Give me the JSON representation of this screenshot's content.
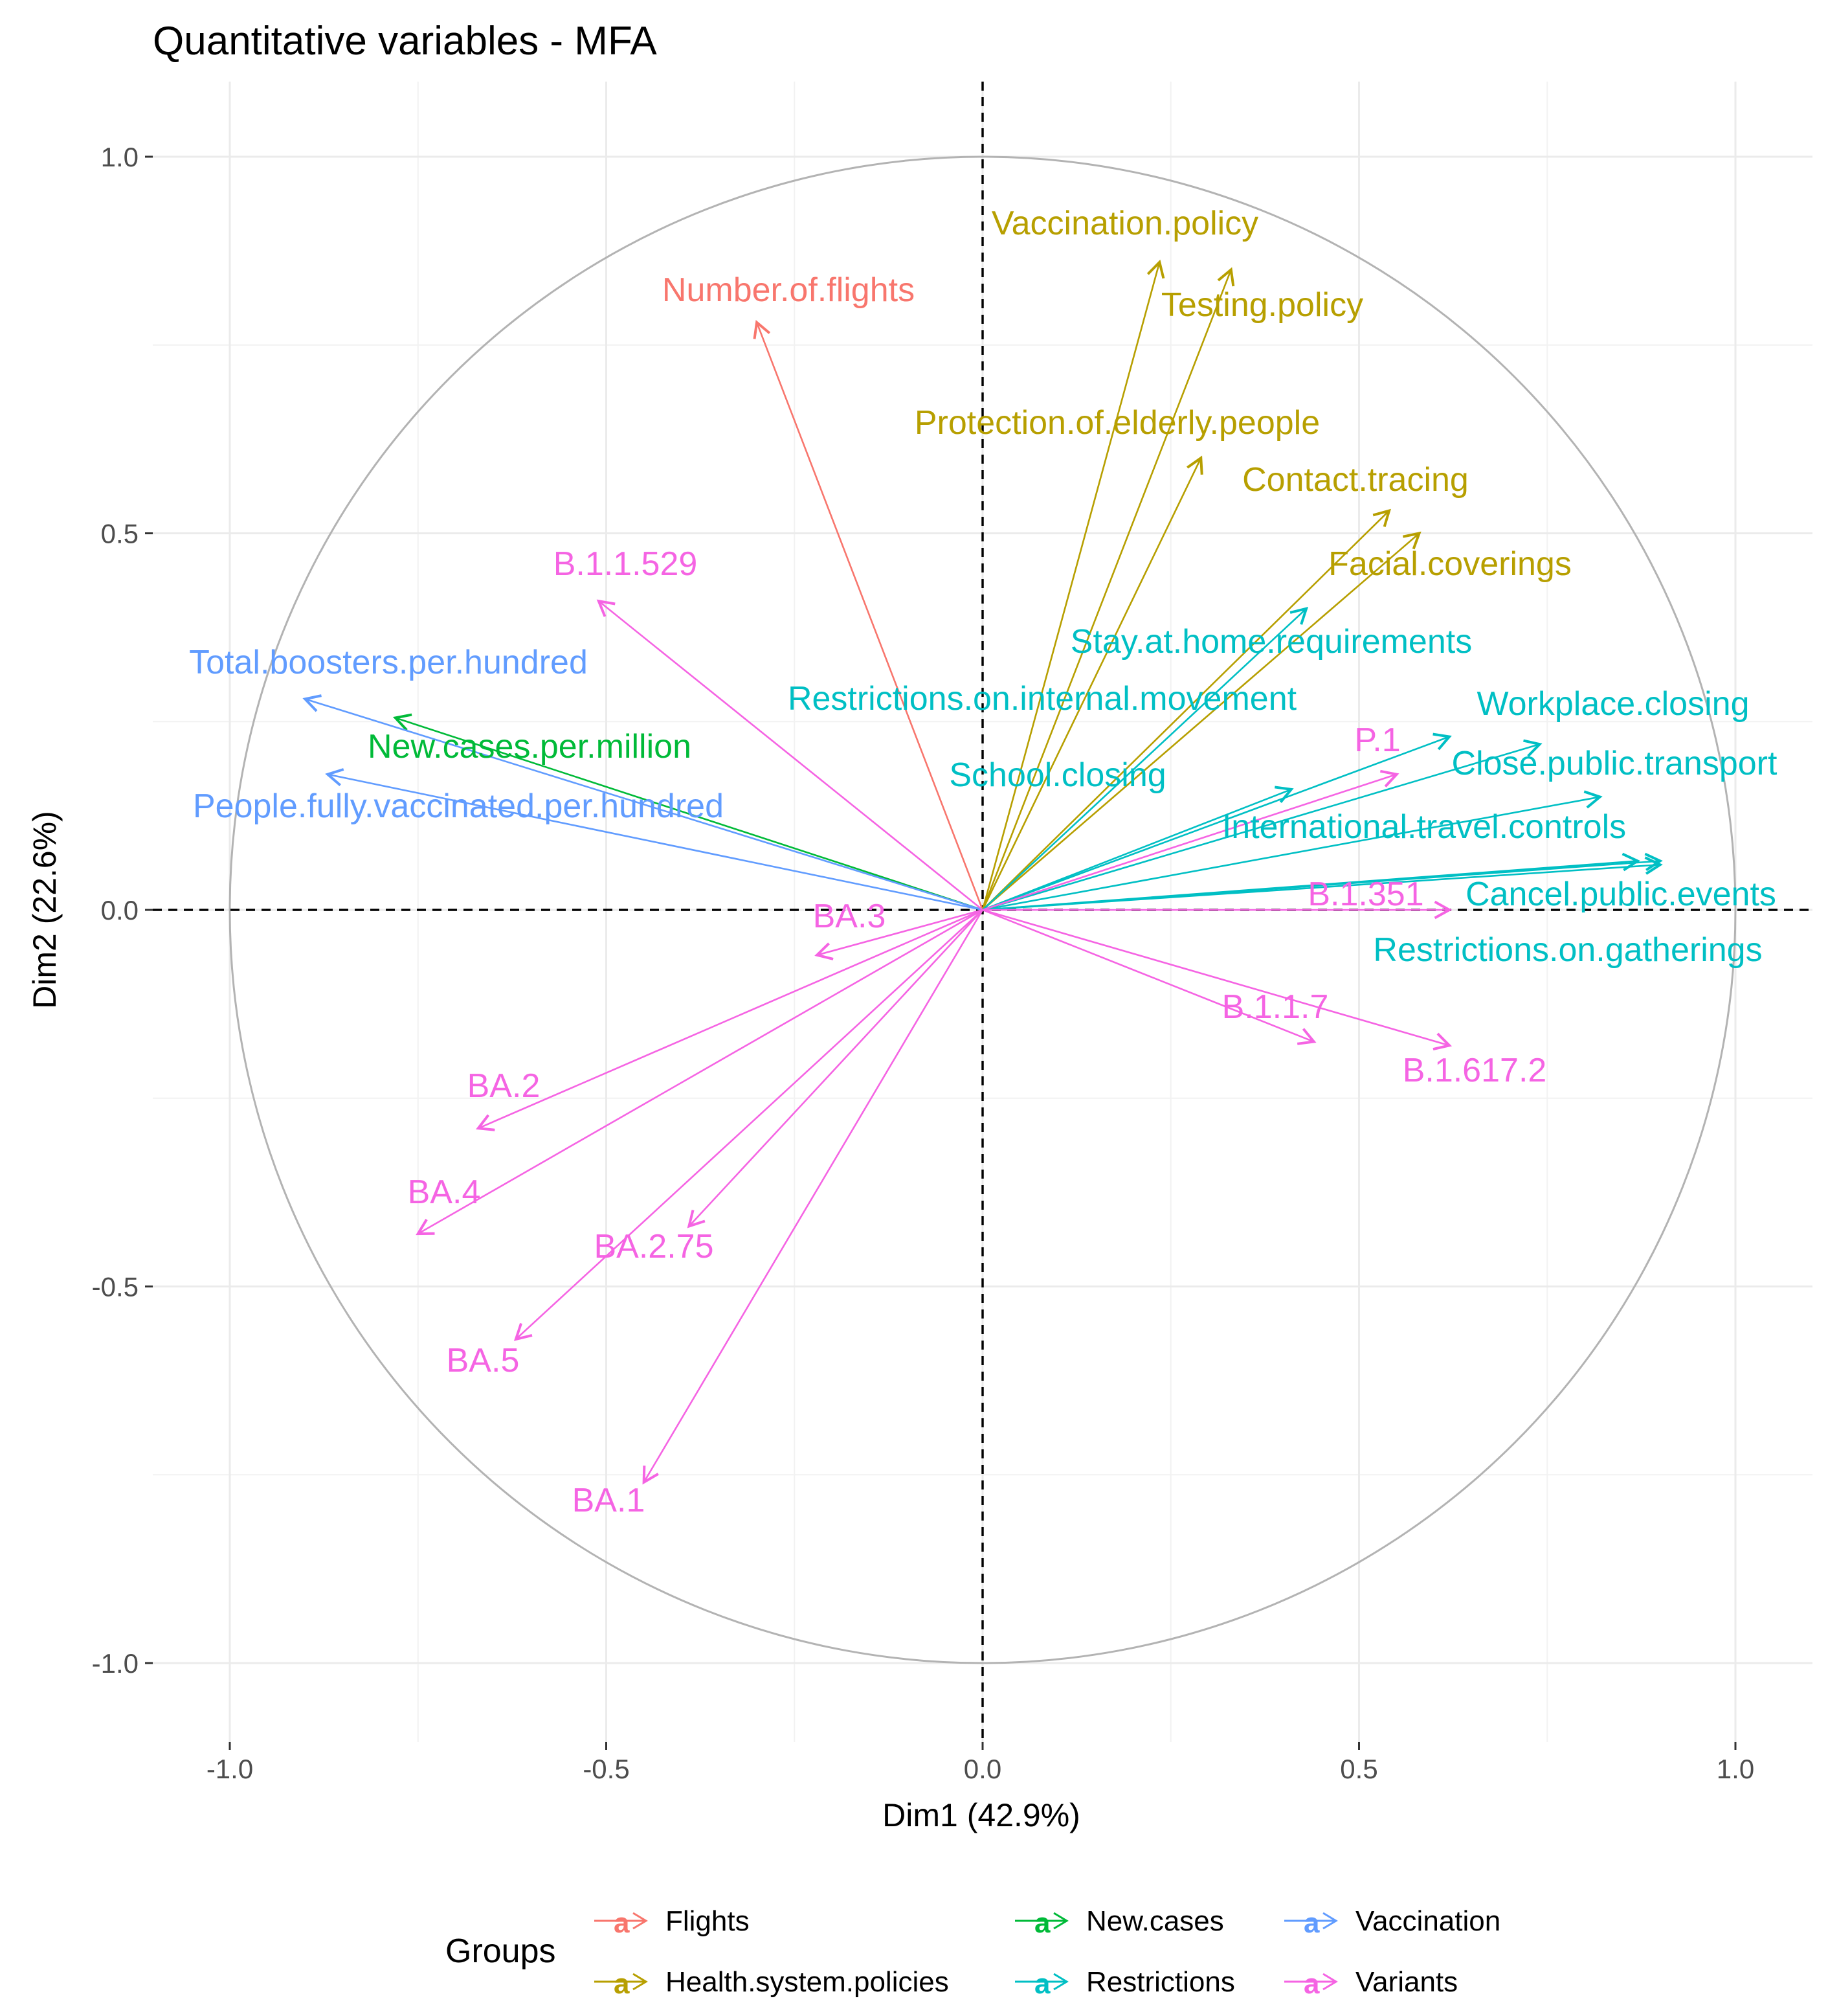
{
  "chart_data": {
    "type": "scatter",
    "subtype": "correlation-circle",
    "title": "Quantitative variables - MFA",
    "xlabel": "Dim1 (42.9%)",
    "ylabel": "Dim2 (22.6%)",
    "xlim": [
      -1.1,
      1.1
    ],
    "ylim": [
      -1.1,
      1.1
    ],
    "x_ticks": [
      -1.0,
      -0.5,
      0.0,
      0.5,
      1.0
    ],
    "x_tick_labels": [
      "-1.0",
      "-0.5",
      "0.0",
      "0.5",
      "1.0"
    ],
    "y_ticks": [
      -1.0,
      -0.5,
      0.0,
      0.5,
      1.0
    ],
    "y_tick_labels": [
      "-1.0",
      "-0.5",
      "0.0",
      "0.5",
      "1.0"
    ],
    "grid": true,
    "legend": {
      "title": "Groups",
      "position": "bottom",
      "entries": [
        {
          "name": "Flights",
          "color": "#F8766D"
        },
        {
          "name": "Health.system.policies",
          "color": "#B79F00"
        },
        {
          "name": "New.cases",
          "color": "#00BA38"
        },
        {
          "name": "Restrictions",
          "color": "#00BFC4"
        },
        {
          "name": "Vaccination",
          "color": "#619CFF"
        },
        {
          "name": "Variants",
          "color": "#F564E3"
        }
      ]
    },
    "variables": [
      {
        "name": "Number.of.flights",
        "group": "Flights",
        "x": -0.3,
        "y": 0.78
      },
      {
        "name": "Vaccination.policy",
        "group": "Health.system.policies",
        "x": 0.235,
        "y": 0.86
      },
      {
        "name": "Testing.policy",
        "group": "Health.system.policies",
        "x": 0.33,
        "y": 0.85
      },
      {
        "name": "Protection.of.elderly.people",
        "group": "Health.system.policies",
        "x": 0.29,
        "y": 0.6
      },
      {
        "name": "Contact.tracing",
        "group": "Health.system.policies",
        "x": 0.54,
        "y": 0.53
      },
      {
        "name": "Facial.coverings",
        "group": "Health.system.policies",
        "x": 0.58,
        "y": 0.5
      },
      {
        "name": "New.cases.per.million",
        "group": "New.cases",
        "x": -0.78,
        "y": 0.255
      },
      {
        "name": "Stay.at.home.requirements",
        "group": "Restrictions",
        "x": 0.43,
        "y": 0.4
      },
      {
        "name": "Restrictions.on.internal.movement",
        "group": "Restrictions",
        "x": 0.62,
        "y": 0.23
      },
      {
        "name": "Workplace.closing",
        "group": "Restrictions",
        "x": 0.74,
        "y": 0.22
      },
      {
        "name": "School.closing",
        "group": "Restrictions",
        "x": 0.41,
        "y": 0.16
      },
      {
        "name": "Close.public.transport",
        "group": "Restrictions",
        "x": 0.82,
        "y": 0.15
      },
      {
        "name": "International.travel.controls",
        "group": "Restrictions",
        "x": 0.87,
        "y": 0.065
      },
      {
        "name": "Cancel.public.events",
        "group": "Restrictions",
        "x": 0.9,
        "y": 0.065
      },
      {
        "name": "Restrictions.on.gatherings",
        "group": "Restrictions",
        "x": 0.9,
        "y": 0.06
      },
      {
        "name": "Total.boosters.per.hundred",
        "group": "Vaccination",
        "x": -0.9,
        "y": 0.28
      },
      {
        "name": "People.fully.vaccinated.per.hundred",
        "group": "Vaccination",
        "x": -0.87,
        "y": 0.18
      },
      {
        "name": "B.1.1.529",
        "group": "Variants",
        "x": -0.51,
        "y": 0.41
      },
      {
        "name": "P.1",
        "group": "Variants",
        "x": 0.55,
        "y": 0.18
      },
      {
        "name": "B.1.351",
        "group": "Variants",
        "x": 0.62,
        "y": 0.0
      },
      {
        "name": "B.1.1.7",
        "group": "Variants",
        "x": 0.44,
        "y": -0.175
      },
      {
        "name": "B.1.617.2",
        "group": "Variants",
        "x": 0.62,
        "y": -0.18
      },
      {
        "name": "BA.3",
        "group": "Variants",
        "x": -0.22,
        "y": -0.06
      },
      {
        "name": "BA.2",
        "group": "Variants",
        "x": -0.67,
        "y": -0.29
      },
      {
        "name": "BA.4",
        "group": "Variants",
        "x": -0.75,
        "y": -0.43
      },
      {
        "name": "BA.2.75",
        "group": "Variants",
        "x": -0.39,
        "y": -0.42
      },
      {
        "name": "BA.5",
        "group": "Variants",
        "x": -0.62,
        "y": -0.57
      },
      {
        "name": "BA.1",
        "group": "Variants",
        "x": -0.45,
        "y": -0.76
      }
    ]
  }
}
